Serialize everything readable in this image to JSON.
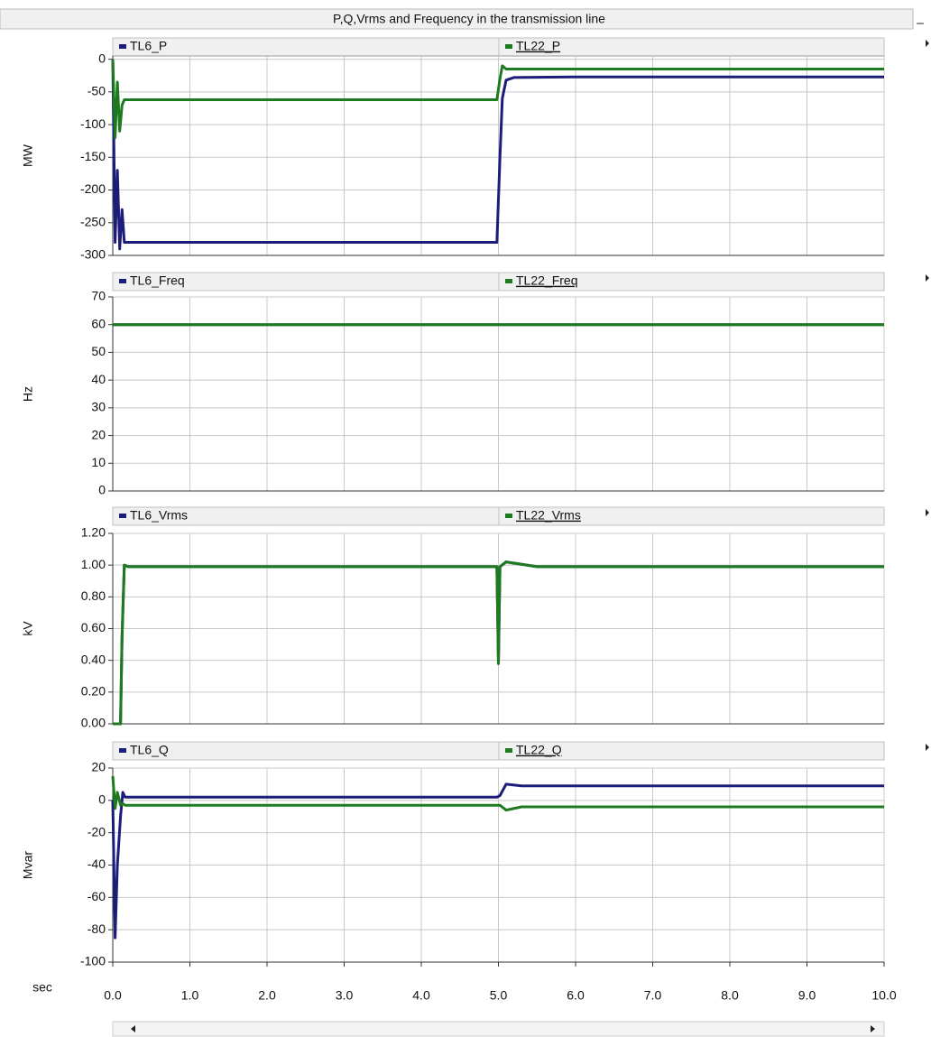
{
  "title": "P,Q,Vrms and Frequency in the transmission line",
  "chart_data": [
    {
      "type": "line",
      "ylabel": "MW",
      "x": [
        0,
        0.03,
        0.06,
        0.09,
        0.12,
        0.15,
        0.2,
        1,
        3,
        4.98,
        5.02,
        5.05,
        5.1,
        5.2,
        6,
        10
      ],
      "series": [
        {
          "name": "TL6_P",
          "color": "#1c1c7a",
          "values": [
            0,
            -280,
            -170,
            -290,
            -230,
            -280,
            -280,
            -280,
            -280,
            -280,
            -150,
            -60,
            -32,
            -28,
            -27,
            -27
          ]
        },
        {
          "name": "TL22_P",
          "color": "#1e7a1e",
          "values": [
            0,
            -120,
            -35,
            -110,
            -70,
            -62,
            -62,
            -62,
            -62,
            -62,
            -30,
            -10,
            -15,
            -15,
            -15,
            -15
          ]
        }
      ],
      "xlim": [
        0,
        10
      ],
      "xticks": [
        0,
        1,
        2,
        3,
        4,
        5,
        6,
        7,
        8,
        9,
        10
      ],
      "ylim": [
        -300,
        5
      ],
      "yticks": [
        -300,
        -250,
        -200,
        -150,
        -100,
        -50,
        0
      ],
      "grid": true
    },
    {
      "type": "line",
      "ylabel": "Hz",
      "x": [
        0,
        5,
        5.2,
        10
      ],
      "series": [
        {
          "name": "TL6_Freq",
          "color": "#1c1c7a",
          "values": [
            60,
            60,
            60,
            60
          ]
        },
        {
          "name": "TL22_Freq",
          "color": "#1e7a1e",
          "values": [
            60,
            60,
            60,
            60
          ]
        }
      ],
      "xlim": [
        0,
        10
      ],
      "xticks": [
        0,
        1,
        2,
        3,
        4,
        5,
        6,
        7,
        8,
        9,
        10
      ],
      "ylim": [
        0,
        70
      ],
      "yticks": [
        0,
        10,
        20,
        30,
        40,
        50,
        60,
        70
      ],
      "grid": true
    },
    {
      "type": "line",
      "ylabel": "kV",
      "x": [
        0,
        0.1,
        0.12,
        0.15,
        0.2,
        4.98,
        5.0,
        5.02,
        5.1,
        5.5,
        10
      ],
      "series": [
        {
          "name": "TL6_Vrms",
          "color": "#1c1c7a",
          "values": [
            0,
            0,
            0.55,
            1.0,
            0.99,
            0.99,
            0.38,
            0.99,
            1.02,
            0.99,
            0.99
          ]
        },
        {
          "name": "TL22_Vrms",
          "color": "#1e7a1e",
          "values": [
            0,
            0,
            0.55,
            1.0,
            0.99,
            0.99,
            0.38,
            0.99,
            1.02,
            0.99,
            0.99
          ]
        }
      ],
      "xlim": [
        0,
        10
      ],
      "xticks": [
        0,
        1,
        2,
        3,
        4,
        5,
        6,
        7,
        8,
        9,
        10
      ],
      "ylim": [
        0,
        1.2
      ],
      "yticks": [
        {
          "value": 0,
          "label": "0.00"
        },
        {
          "value": 0.2,
          "label": "0.20"
        },
        {
          "value": 0.4,
          "label": "0.40"
        },
        {
          "value": 0.6,
          "label": "0.60"
        },
        {
          "value": 0.8,
          "label": "0.80"
        },
        {
          "value": 1,
          "label": "1.00"
        },
        {
          "value": 1.2,
          "label": "1.20"
        }
      ],
      "grid": true
    },
    {
      "type": "line",
      "ylabel": "Mvar",
      "xlabel": "sec",
      "x": [
        0,
        0.03,
        0.06,
        0.1,
        0.13,
        0.16,
        0.2,
        1,
        4.98,
        5.02,
        5.1,
        5.3,
        10
      ],
      "series": [
        {
          "name": "TL6_Q",
          "color": "#1c1c7a",
          "values": [
            0,
            -85,
            -40,
            -10,
            5,
            2,
            2,
            2,
            2,
            3,
            10,
            9,
            9
          ]
        },
        {
          "name": "TL22_Q",
          "color": "#1e7a1e",
          "values": [
            15,
            -5,
            5,
            -3,
            -2,
            -3,
            -3,
            -3,
            -3,
            -3,
            -6,
            -4,
            -4
          ]
        }
      ],
      "xlim": [
        0,
        10
      ],
      "xticks": [
        {
          "value": 0,
          "label": "0.0"
        },
        {
          "value": 1,
          "label": "1.0"
        },
        {
          "value": 2,
          "label": "2.0"
        },
        {
          "value": 3,
          "label": "3.0"
        },
        {
          "value": 4,
          "label": "4.0"
        },
        {
          "value": 5,
          "label": "5.0"
        },
        {
          "value": 6,
          "label": "6.0"
        },
        {
          "value": 7,
          "label": "7.0"
        },
        {
          "value": 8,
          "label": "8.0"
        },
        {
          "value": 9,
          "label": "9.0"
        },
        {
          "value": 10,
          "label": "10.0"
        }
      ],
      "ylim": [
        -100,
        20
      ],
      "yticks": [
        -100,
        -80,
        -60,
        -40,
        -20,
        0,
        20
      ],
      "grid": true
    }
  ]
}
